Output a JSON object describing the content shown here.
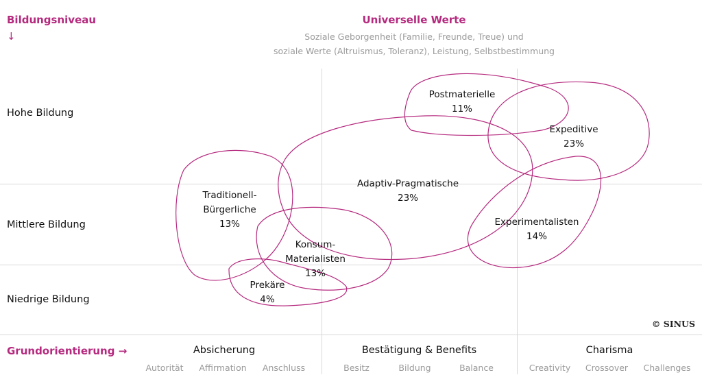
{
  "y_axis": {
    "title": "Bildungsniveau",
    "arrow": "↓"
  },
  "values_header": {
    "title": "Universelle Werte",
    "line1": "Soziale Geborgenheit (Familie, Freunde, Treue) und",
    "line2": "soziale Werte (Altruismus, Toleranz), Leistung, Selbstbestimmung"
  },
  "rows": {
    "high": "Hohe Bildung",
    "mid": "Mittlere Bildung",
    "low": "Niedrige Bildung"
  },
  "segments": {
    "postmaterielle": {
      "name": "Postmaterielle",
      "pct": "11%"
    },
    "expeditive": {
      "name": "Expeditive",
      "pct": "23%"
    },
    "adaptiv": {
      "name": "Adaptiv-Pragmatische",
      "pct": "23%"
    },
    "traditionell": {
      "name1": "Traditionell-",
      "name2": "Bürgerliche",
      "pct": "13%"
    },
    "experimentalisten": {
      "name": "Experimentalisten",
      "pct": "14%"
    },
    "konsum": {
      "name1": "Konsum-",
      "name2": "Materialisten",
      "pct": "13%"
    },
    "prekaere": {
      "name": "Prekäre",
      "pct": "4%"
    }
  },
  "source": "© SINUS",
  "x_axis": {
    "title": "Grundorientierung →",
    "columns": [
      {
        "title": "Absicherung",
        "subs": [
          "Autorität",
          "Affirmation",
          "Anschluss"
        ]
      },
      {
        "title": "Bestätigung & Benefits",
        "subs": [
          "Besitz",
          "Bildung",
          "Balance"
        ]
      },
      {
        "title": "Charisma",
        "subs": [
          "Creativity",
          "Crossover",
          "Challenges"
        ]
      }
    ]
  },
  "colors": {
    "accent": "#b5297e",
    "grid": "#d8d8d8",
    "subtext": "#9a9a9a"
  }
}
